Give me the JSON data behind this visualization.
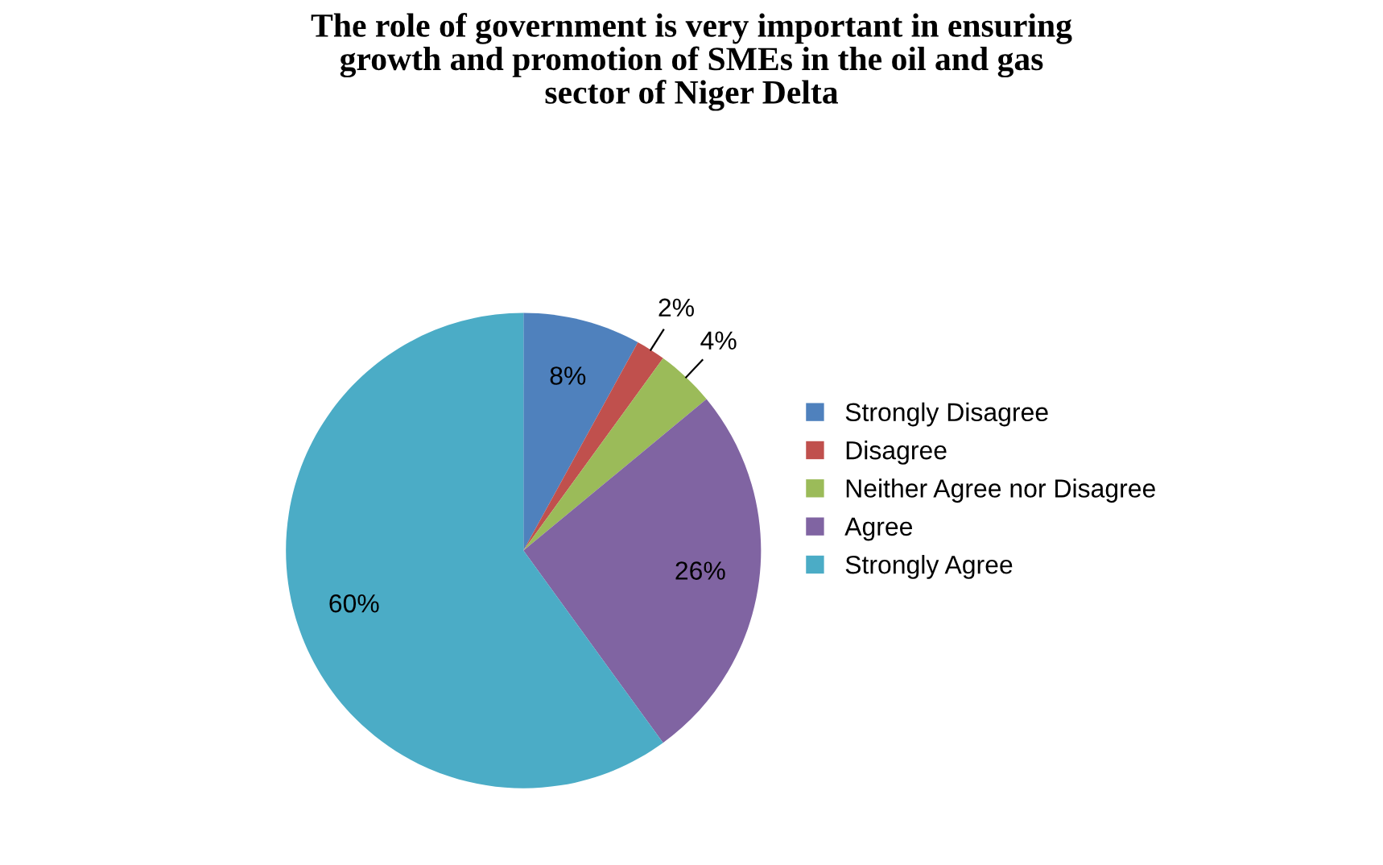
{
  "chart_data": {
    "type": "pie",
    "title": "The role of government is very important in ensuring\ngrowth and promotion of SMEs in the oil and gas\nsector of Niger Delta",
    "categories": [
      "Strongly Disagree",
      "Disagree",
      "Neither Agree nor Disagree",
      "Agree",
      "Strongly Agree"
    ],
    "values": [
      8,
      2,
      4,
      26,
      60
    ],
    "colors": [
      "#4f81bd",
      "#c0504d",
      "#9bbb59",
      "#8064a2",
      "#4bacc6"
    ],
    "value_labels": [
      "8%",
      "2%",
      "4%",
      "26%",
      "60%"
    ],
    "legend": "right"
  }
}
